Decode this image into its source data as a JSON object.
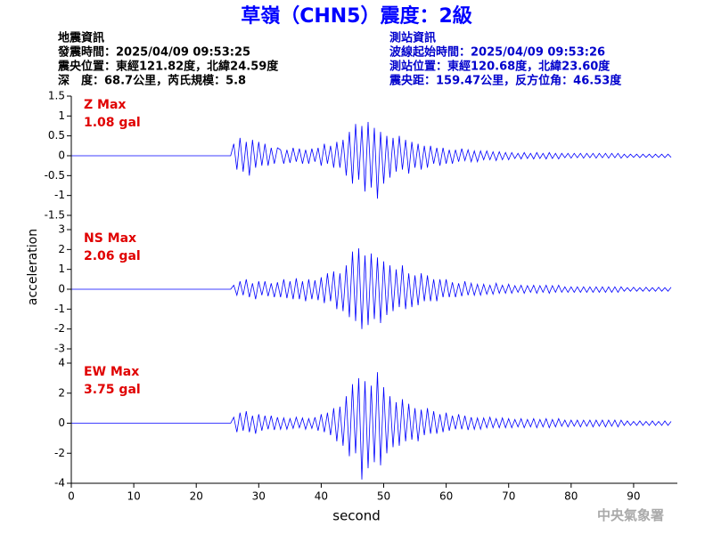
{
  "chart_data": {
    "type": "line",
    "title": "草嶺（CHN5）震度：2級",
    "left_info": [
      "地震資訊",
      "發震時間：2025/04/09 09:53:25",
      "震央位置：東經121.82度，北緯24.59度",
      "深　度：68.7公里，芮氏規模：5.8"
    ],
    "right_info": [
      "測站資訊",
      "波線起始時間：2025/04/09 09:53:26",
      "測站位置：東經120.68度，北緯23.60度",
      "震央距：159.47公里，反方位角：46.53度"
    ],
    "x_label": "second",
    "y_label": "acceleration",
    "watermark": "中央氣象署",
    "xlim": [
      0,
      97
    ],
    "xticks": [
      0,
      10,
      20,
      30,
      40,
      50,
      60,
      70,
      80,
      90
    ],
    "x": [
      0,
      25.5,
      26,
      26.5,
      27,
      27.5,
      28,
      28.5,
      29,
      29.5,
      30,
      30.5,
      31,
      31.5,
      32,
      32.5,
      33,
      33.5,
      34,
      34.5,
      35,
      35.5,
      36,
      36.5,
      37,
      37.5,
      38,
      38.5,
      39,
      39.5,
      40,
      40.5,
      41,
      41.5,
      42,
      42.5,
      43,
      43.5,
      44,
      44.5,
      45,
      45.5,
      46,
      46.5,
      47,
      47.5,
      48,
      48.5,
      49,
      49.5,
      50,
      50.5,
      51,
      51.5,
      52,
      52.5,
      53,
      53.5,
      54,
      54.5,
      55,
      55.5,
      56,
      56.5,
      57,
      57.5,
      58,
      58.5,
      59,
      59.5,
      60,
      60.5,
      61,
      61.5,
      62,
      62.5,
      63,
      63.5,
      64,
      64.5,
      65,
      65.5,
      66,
      66.5,
      67,
      67.5,
      68,
      68.5,
      69,
      69.5,
      70,
      70.5,
      71,
      71.5,
      72,
      72.5,
      73,
      73.5,
      74,
      74.5,
      75,
      75.5,
      76,
      76.5,
      77,
      77.5,
      78,
      78.5,
      79,
      79.5,
      80,
      80.5,
      81,
      81.5,
      82,
      82.5,
      83,
      83.5,
      84,
      84.5,
      85,
      85.5,
      86,
      86.5,
      87,
      87.5,
      88,
      88.5,
      89,
      89.5,
      90,
      90.5,
      91,
      91.5,
      92,
      92.5,
      93,
      93.5,
      94,
      94.5,
      95,
      95.5,
      96
    ],
    "series": [
      {
        "name": "Z Max",
        "max_label": "1.08 gal",
        "color": "#0000ff",
        "label_color": "#e00000",
        "ylim": [
          -1.5,
          1.5
        ],
        "yticks": [
          -1.5,
          -1,
          -0.5,
          0,
          0.5,
          1,
          1.5
        ],
        "values": [
          0,
          0,
          0.3,
          -0.35,
          0.45,
          -0.4,
          0.35,
          -0.5,
          0.4,
          -0.3,
          0.35,
          -0.25,
          0.3,
          -0.25,
          0.2,
          -0.2,
          0.2,
          0.15,
          -0.2,
          0.15,
          -0.18,
          0.2,
          -0.15,
          0.18,
          -0.2,
          0.15,
          -0.2,
          0.18,
          -0.15,
          0.2,
          -0.25,
          0.3,
          -0.2,
          0.25,
          -0.3,
          0.35,
          -0.3,
          0.4,
          -0.5,
          0.6,
          -0.7,
          0.8,
          -0.6,
          0.75,
          -0.9,
          0.85,
          -0.8,
          0.7,
          -1.08,
          0.6,
          -0.7,
          0.5,
          -0.55,
          0.45,
          -0.4,
          0.5,
          -0.35,
          0.4,
          -0.45,
          0.35,
          -0.3,
          0.3,
          -0.35,
          0.25,
          -0.3,
          0.25,
          -0.2,
          0.2,
          -0.25,
          0.2,
          -0.2,
          0.15,
          -0.2,
          0.15,
          -0.15,
          0.18,
          -0.12,
          0.15,
          -0.15,
          0.12,
          -0.15,
          0.12,
          -0.1,
          0.12,
          -0.1,
          0.1,
          -0.12,
          0.1,
          -0.1,
          0.08,
          -0.1,
          0.08,
          -0.07,
          0.06,
          -0.08,
          0.08,
          -0.07,
          0.06,
          -0.08,
          0.08,
          -0.07,
          0.06,
          -0.08,
          0.08,
          -0.07,
          0.06,
          -0.08,
          0.06,
          -0.05,
          0.06,
          -0.06,
          0.06,
          -0.05,
          0.06,
          -0.06,
          0.06,
          -0.05,
          0.06,
          -0.06,
          0.06,
          -0.05,
          0.06,
          -0.06,
          0.06,
          -0.05,
          0.06,
          -0.06,
          0.04,
          -0.05,
          0.04,
          -0.04,
          0.04,
          -0.05,
          0.04,
          -0.04,
          0.04,
          -0.05,
          0.04,
          -0.04,
          0.04,
          -0.05,
          0.04,
          -0.04
        ]
      },
      {
        "name": "NS Max",
        "max_label": "2.06 gal",
        "color": "#0000ff",
        "label_color": "#e00000",
        "ylim": [
          -3,
          3
        ],
        "yticks": [
          -3,
          -2,
          -1,
          0,
          1,
          2,
          3
        ],
        "values": [
          0,
          0,
          0.2,
          -0.3,
          0.4,
          -0.3,
          0.5,
          -0.4,
          0.3,
          -0.5,
          0.4,
          -0.3,
          0.4,
          -0.35,
          0.3,
          -0.4,
          0.35,
          -0.4,
          0.5,
          -0.45,
          0.4,
          -0.5,
          0.55,
          -0.5,
          0.4,
          -0.6,
          0.5,
          -0.5,
          0.45,
          -0.55,
          0.6,
          -0.7,
          0.8,
          -0.6,
          0.9,
          -1.0,
          0.8,
          -1.1,
          1.2,
          -1.4,
          1.9,
          -1.6,
          2.06,
          -2.0,
          1.7,
          -1.8,
          1.8,
          -1.5,
          1.6,
          -1.7,
          1.4,
          -1.3,
          1.2,
          -1.1,
          1.0,
          -0.9,
          1.2,
          -1.0,
          0.8,
          -0.9,
          0.7,
          -0.8,
          0.8,
          -0.6,
          0.7,
          -0.6,
          0.5,
          -0.6,
          0.5,
          -0.4,
          0.5,
          -0.4,
          0.35,
          -0.4,
          0.3,
          -0.35,
          0.4,
          -0.3,
          0.3,
          -0.3,
          0.25,
          -0.3,
          0.25,
          -0.25,
          0.2,
          -0.25,
          0.3,
          -0.2,
          0.2,
          -0.2,
          0.25,
          -0.2,
          0.18,
          -0.15,
          0.2,
          -0.2,
          0.18,
          -0.15,
          0.2,
          -0.2,
          0.18,
          -0.15,
          0.2,
          -0.2,
          0.18,
          -0.15,
          0.2,
          -0.15,
          0.12,
          -0.15,
          0.12,
          -0.15,
          0.12,
          -0.15,
          0.12,
          -0.15,
          0.12,
          -0.15,
          0.12,
          -0.15,
          0.12,
          -0.15,
          0.12,
          -0.15,
          0.12,
          -0.15,
          0.12,
          -0.1,
          0.08,
          -0.1,
          0.1,
          -0.1,
          0.08,
          -0.1,
          0.1,
          -0.1,
          0.08,
          -0.1,
          0.1,
          -0.1,
          0.08,
          -0.1,
          0.1
        ]
      },
      {
        "name": "EW Max",
        "max_label": "3.75 gal",
        "color": "#0000ff",
        "label_color": "#e00000",
        "ylim": [
          -4,
          4
        ],
        "yticks": [
          -4,
          -2,
          0,
          2,
          4
        ],
        "values": [
          0,
          0,
          0.4,
          -0.6,
          0.7,
          -0.5,
          0.8,
          -0.6,
          0.5,
          -0.7,
          0.6,
          -0.5,
          0.5,
          -0.4,
          0.5,
          -0.45,
          0.4,
          -0.4,
          0.35,
          -0.4,
          0.3,
          -0.35,
          0.4,
          -0.3,
          0.35,
          -0.4,
          0.3,
          -0.35,
          0.4,
          -0.5,
          0.6,
          -0.6,
          0.7,
          -0.8,
          1.0,
          -1.2,
          1.1,
          -1.5,
          1.8,
          -2.2,
          2.6,
          -2.0,
          3.0,
          -3.75,
          2.8,
          -3.0,
          2.5,
          -2.6,
          3.4,
          -2.8,
          2.4,
          -2.0,
          1.8,
          -1.6,
          1.4,
          -1.5,
          1.6,
          -1.2,
          1.3,
          -1.1,
          1.0,
          -1.2,
          0.9,
          -0.8,
          1.0,
          -0.7,
          0.8,
          -0.7,
          0.6,
          -0.6,
          0.7,
          -0.5,
          0.5,
          -0.4,
          0.6,
          -0.4,
          0.5,
          -0.45,
          0.4,
          -0.4,
          0.35,
          -0.4,
          0.35,
          -0.3,
          0.4,
          -0.3,
          0.3,
          -0.3,
          0.35,
          -0.3,
          0.3,
          -0.3,
          0.25,
          -0.25,
          0.3,
          -0.3,
          0.25,
          -0.25,
          0.3,
          -0.3,
          0.25,
          -0.25,
          0.3,
          -0.3,
          0.25,
          -0.25,
          0.3,
          -0.2,
          0.2,
          -0.25,
          0.2,
          -0.2,
          0.2,
          -0.25,
          0.2,
          -0.2,
          0.2,
          -0.25,
          0.2,
          -0.2,
          0.2,
          -0.25,
          0.2,
          -0.2,
          0.2,
          -0.25,
          0.2,
          -0.15,
          0.15,
          -0.15,
          0.12,
          -0.15,
          0.15,
          -0.15,
          0.12,
          -0.15,
          0.15,
          -0.15,
          0.12,
          -0.15,
          0.15,
          -0.15,
          0.12
        ]
      }
    ]
  }
}
